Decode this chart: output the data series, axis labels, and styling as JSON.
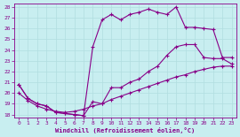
{
  "xlabel": "Windchill (Refroidissement éolien,°C)",
  "bg_color": "#c8eef0",
  "grid_color": "#b0dde0",
  "line_color": "#880088",
  "xlim": [
    -0.5,
    23.5
  ],
  "ylim": [
    17.7,
    28.3
  ],
  "xticks": [
    0,
    1,
    2,
    3,
    4,
    5,
    6,
    7,
    8,
    9,
    10,
    11,
    12,
    13,
    14,
    15,
    16,
    17,
    18,
    19,
    20,
    21,
    22,
    23
  ],
  "yticks": [
    18,
    19,
    20,
    21,
    22,
    23,
    24,
    25,
    26,
    27,
    28
  ],
  "curve1_x": [
    0,
    1,
    2,
    3,
    4,
    5,
    6,
    7,
    8,
    9,
    10,
    11,
    12,
    13,
    14,
    15,
    16,
    17,
    18,
    19,
    20,
    21,
    22,
    23
  ],
  "curve1_y": [
    20.8,
    19.5,
    19.0,
    18.8,
    18.2,
    18.1,
    18.0,
    17.9,
    24.3,
    26.8,
    27.3,
    26.8,
    27.3,
    27.5,
    27.8,
    27.5,
    27.3,
    28.0,
    26.1,
    26.1,
    26.0,
    25.9,
    23.3,
    23.3
  ],
  "curve2_x": [
    0,
    1,
    2,
    3,
    4,
    5,
    6,
    7,
    8,
    9,
    10,
    11,
    12,
    13,
    14,
    15,
    16,
    17,
    18,
    19,
    20,
    21,
    22,
    23
  ],
  "curve2_y": [
    20.8,
    19.5,
    19.0,
    18.8,
    18.2,
    18.1,
    18.0,
    17.9,
    19.2,
    19.0,
    20.5,
    20.5,
    21.0,
    21.3,
    22.0,
    22.5,
    23.5,
    24.3,
    24.5,
    24.5,
    23.3,
    23.2,
    23.2,
    22.7
  ],
  "curve3_x": [
    0,
    1,
    2,
    3,
    4,
    5,
    6,
    7,
    8,
    9,
    10,
    11,
    12,
    13,
    14,
    15,
    16,
    17,
    18,
    19,
    20,
    21,
    22,
    23
  ],
  "curve3_y": [
    20.0,
    19.3,
    18.8,
    18.5,
    18.3,
    18.2,
    18.3,
    18.5,
    18.8,
    19.0,
    19.4,
    19.7,
    20.0,
    20.3,
    20.6,
    20.9,
    21.2,
    21.5,
    21.7,
    22.0,
    22.2,
    22.4,
    22.5,
    22.5
  ]
}
